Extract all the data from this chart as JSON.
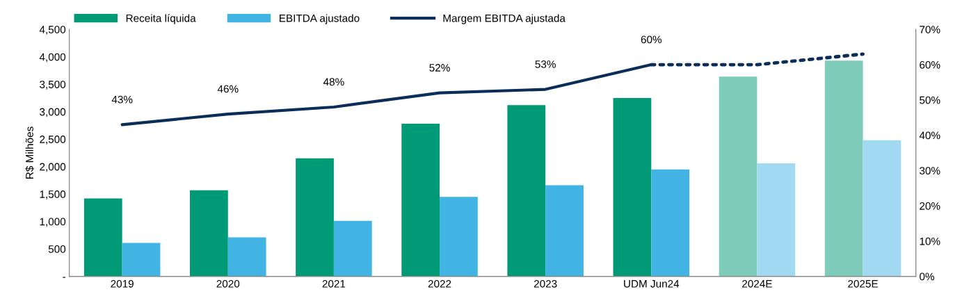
{
  "chart_data": {
    "type": "bar",
    "ylabel": "R$ Milhões",
    "categories": [
      "2019",
      "2020",
      "2021",
      "2022",
      "2023",
      "UDM Jun24",
      "2024E",
      "2025E"
    ],
    "series": [
      {
        "name": "Receita líquida",
        "color": "#009a76",
        "colors": [
          "#009a76",
          "#009a76",
          "#009a76",
          "#009a76",
          "#009a76",
          "#009a76",
          "#80ccba",
          "#80ccba"
        ],
        "values": [
          1420,
          1570,
          2150,
          2780,
          3120,
          3250,
          3640,
          3930
        ]
      },
      {
        "name": "EBITDA ajustado",
        "color": "#41b4e4",
        "colors": [
          "#41b4e4",
          "#41b4e4",
          "#41b4e4",
          "#41b4e4",
          "#41b4e4",
          "#41b4e4",
          "#a0d9f1",
          "#a0d9f1"
        ],
        "values": [
          610,
          710,
          1010,
          1450,
          1660,
          1950,
          2060,
          2480
        ]
      },
      {
        "name": "Margem EBITDA ajustada",
        "type": "line",
        "axis": "y2",
        "color": "#0b2d5a",
        "line_style": "solid",
        "values": [
          43,
          46,
          48,
          52,
          53,
          60,
          null,
          null
        ],
        "value_labels": [
          "43%",
          "46%",
          "48%",
          "52%",
          "53%",
          "60%",
          null,
          null
        ]
      },
      {
        "type": "line",
        "axis": "y2",
        "color": "#0b2d5a",
        "line_style": "dotted",
        "values": [
          null,
          null,
          null,
          null,
          null,
          60,
          60,
          63
        ]
      }
    ],
    "ylim": [
      0,
      4500
    ],
    "yticks": [
      {
        "value": 0,
        "label": "-"
      },
      {
        "value": 500,
        "label": "500"
      },
      {
        "value": 1000,
        "label": "1,000"
      },
      {
        "value": 1500,
        "label": "1,500"
      },
      {
        "value": 2000,
        "label": "2,000"
      },
      {
        "value": 2500,
        "label": "2,500"
      },
      {
        "value": 3000,
        "label": "3,000"
      },
      {
        "value": 3500,
        "label": "3,500"
      },
      {
        "value": 4000,
        "label": "4,000"
      },
      {
        "value": 4500,
        "label": "4,500"
      }
    ],
    "y2lim": [
      0,
      70
    ],
    "y2ticks": [
      {
        "value": 0,
        "label": "0%"
      },
      {
        "value": 10,
        "label": "10%"
      },
      {
        "value": 20,
        "label": "20%"
      },
      {
        "value": 30,
        "label": "30%"
      },
      {
        "value": 40,
        "label": "40%"
      },
      {
        "value": 50,
        "label": "50%"
      },
      {
        "value": 60,
        "label": "60%"
      },
      {
        "value": 70,
        "label": "70%"
      }
    ],
    "grid": false,
    "legend": "top"
  }
}
